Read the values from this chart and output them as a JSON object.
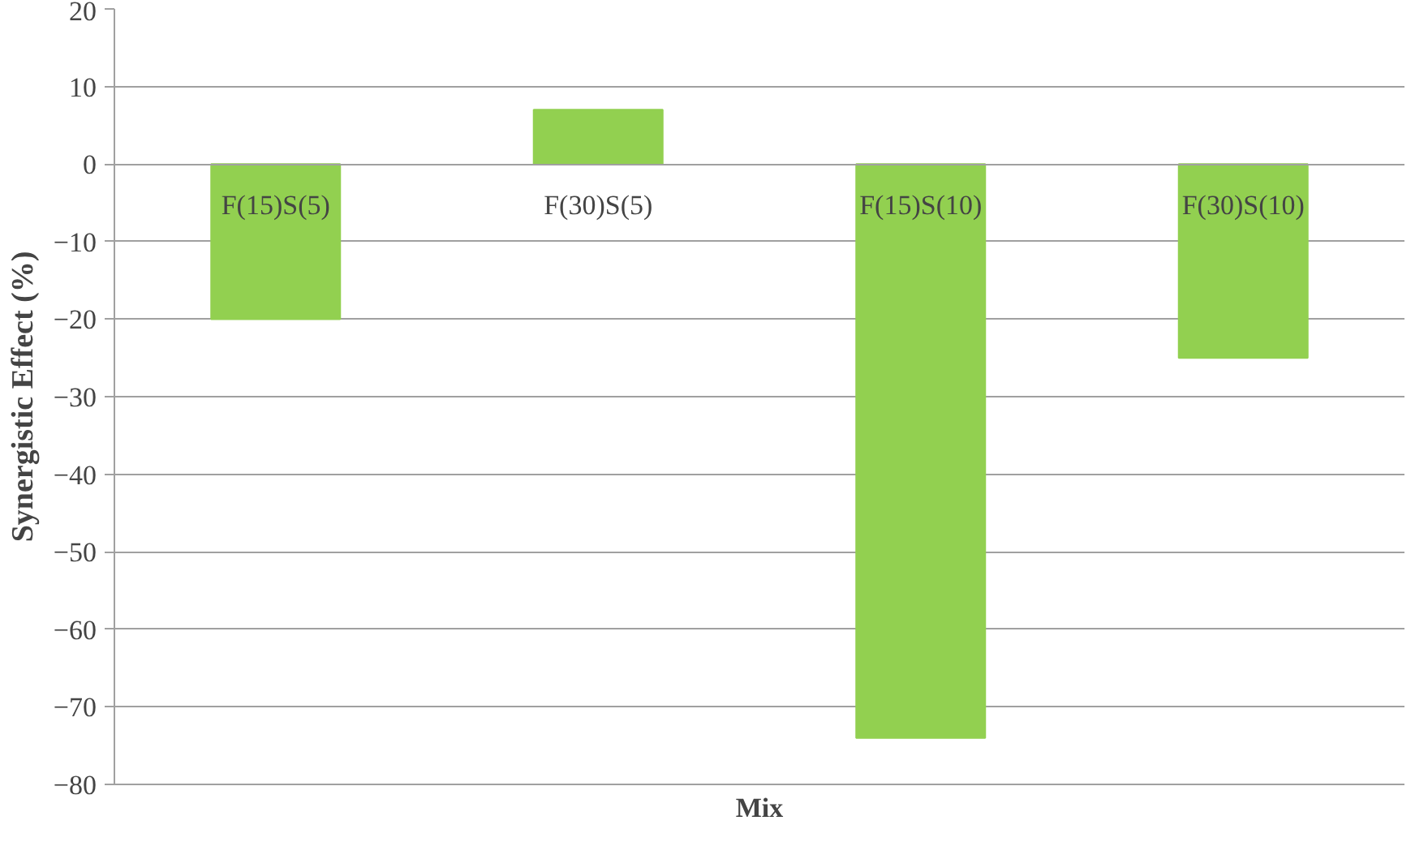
{
  "chart_data": {
    "type": "bar",
    "categories": [
      "F(15)S(5)",
      "F(30)S(5)",
      "F(15)S(10)",
      "F(30)S(10)"
    ],
    "values": [
      -20,
      7,
      -74,
      -25
    ],
    "color": "#92d050",
    "xlabel": "Mix",
    "ylabel": "Synergistic Effect (%)",
    "ylim": [
      -80,
      20
    ],
    "yticks": [
      -80,
      -70,
      -60,
      -50,
      -40,
      -30,
      -20,
      -10,
      0,
      10,
      20
    ],
    "grid": "y"
  }
}
